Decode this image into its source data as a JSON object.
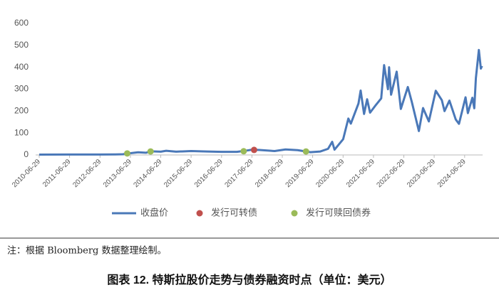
{
  "chart_data": {
    "type": "line",
    "note": "注：根据 Bloomberg 数据整理绘制。",
    "caption": "图表 12. 特斯拉股价走势与债券融资时点（单位：美元）",
    "xlim": [
      "2010-06-29",
      "2025-01-31"
    ],
    "xticks": [
      "2010-06-29",
      "2011-06-29",
      "2012-06-29",
      "2013-06-29",
      "2014-06-29",
      "2015-06-29",
      "2016-06-29",
      "2017-06-29",
      "2018-06-29",
      "2019-06-29",
      "2020-06-29",
      "2021-06-29",
      "2022-06-29",
      "2023-06-29",
      "2024-06-29"
    ],
    "ylim": [
      0,
      600
    ],
    "yticks": [
      0,
      100,
      200,
      300,
      400,
      500,
      600
    ],
    "grid": false,
    "legend": "bottom",
    "series": [
      {
        "name": "收盘价",
        "type": "line",
        "color": "#4a78b8",
        "x": [
          "2010-06-29",
          "2011-06-29",
          "2012-06-29",
          "2013-01-02",
          "2013-04-01",
          "2013-05-15",
          "2013-07-01",
          "2013-09-30",
          "2014-01-02",
          "2014-02-28",
          "2014-06-30",
          "2014-09-02",
          "2014-12-31",
          "2015-06-30",
          "2015-12-31",
          "2016-06-30",
          "2016-12-30",
          "2017-03-31",
          "2017-06-30",
          "2017-09-29",
          "2018-03-29",
          "2018-08-07",
          "2018-12-31",
          "2019-06-03",
          "2019-09-30",
          "2019-12-31",
          "2020-02-19",
          "2020-03-18",
          "2020-06-30",
          "2020-08-31",
          "2020-09-30",
          "2020-12-31",
          "2021-01-26",
          "2021-03-08",
          "2021-04-14",
          "2021-05-19",
          "2021-07-30",
          "2021-09-30",
          "2021-11-04",
          "2021-12-20",
          "2022-01-03",
          "2022-01-27",
          "2022-04-04",
          "2022-05-24",
          "2022-08-16",
          "2022-10-03",
          "2022-12-27",
          "2023-02-15",
          "2023-04-26",
          "2023-07-18",
          "2023-09-29",
          "2023-10-31",
          "2023-12-29",
          "2024-03-14",
          "2024-04-22",
          "2024-07-10",
          "2024-08-07",
          "2024-09-30",
          "2024-10-23",
          "2024-11-11",
          "2024-12-17",
          "2025-01-10",
          "2025-01-24"
        ],
        "values": [
          1.6,
          1.9,
          2.1,
          2.4,
          3.1,
          6,
          8,
          12.3,
          10,
          16.5,
          15,
          19,
          15,
          18,
          16,
          14,
          14.2,
          18.5,
          24,
          22.7,
          17.7,
          25,
          22,
          12.5,
          16,
          28,
          60,
          24,
          72,
          166,
          143,
          235,
          294,
          187,
          254,
          193,
          229,
          258,
          410,
          300,
          400,
          275,
          380,
          210,
          310,
          242,
          109,
          214,
          153,
          293,
          250,
          200,
          248,
          162,
          142,
          263,
          191,
          261,
          213,
          350,
          479,
          394,
          406
        ]
      },
      {
        "name": "发行可转债",
        "type": "scatter",
        "color": "#c0504d",
        "x": [
          "2017-07-25"
        ],
        "values": [
          23
        ]
      },
      {
        "name": "发行可赎回债券",
        "type": "scatter",
        "color": "#9bbb59",
        "x": [
          "2013-05-22",
          "2014-02-27",
          "2017-03-22",
          "2019-04-10"
        ],
        "values": [
          7,
          16,
          17,
          16
        ]
      }
    ]
  }
}
